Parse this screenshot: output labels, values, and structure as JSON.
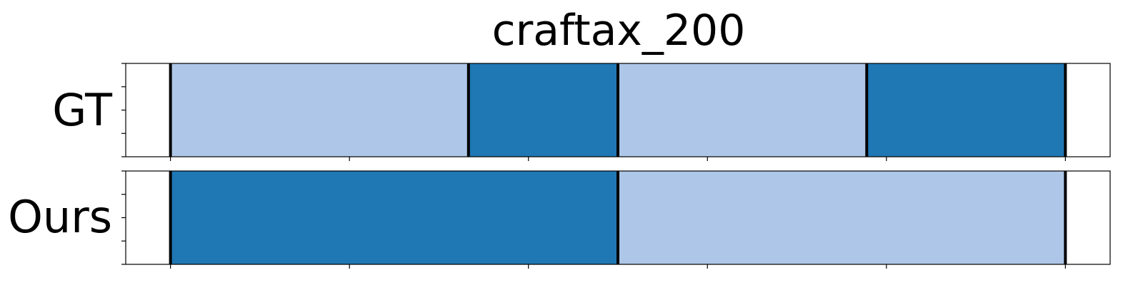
{
  "chart_data": {
    "type": "segmentation-timeline",
    "title": "craftax_200",
    "xlim": [
      -0.5,
      10.5
    ],
    "colors": {
      "light": "#aec7e8",
      "dark": "#1f77b4",
      "boundary": "#000000",
      "frame": "#000000"
    },
    "rows": [
      {
        "label": "GT",
        "segments": [
          {
            "start": 0,
            "end": 3.33,
            "color": "light"
          },
          {
            "start": 3.33,
            "end": 5.0,
            "color": "dark"
          },
          {
            "start": 5.0,
            "end": 7.78,
            "color": "light"
          },
          {
            "start": 7.78,
            "end": 10.0,
            "color": "dark"
          }
        ],
        "boundaries": [
          0,
          3.33,
          5.0,
          7.78,
          10.0
        ]
      },
      {
        "label": "Ours",
        "segments": [
          {
            "start": 0,
            "end": 5.0,
            "color": "dark"
          },
          {
            "start": 5.0,
            "end": 10.0,
            "color": "light"
          }
        ],
        "boundaries": [
          0,
          5.0,
          10.0
        ]
      }
    ],
    "x_ticks": [
      0,
      2,
      4,
      6,
      8,
      10
    ],
    "y_tick_count": 5,
    "grid": false,
    "legend": "none"
  }
}
